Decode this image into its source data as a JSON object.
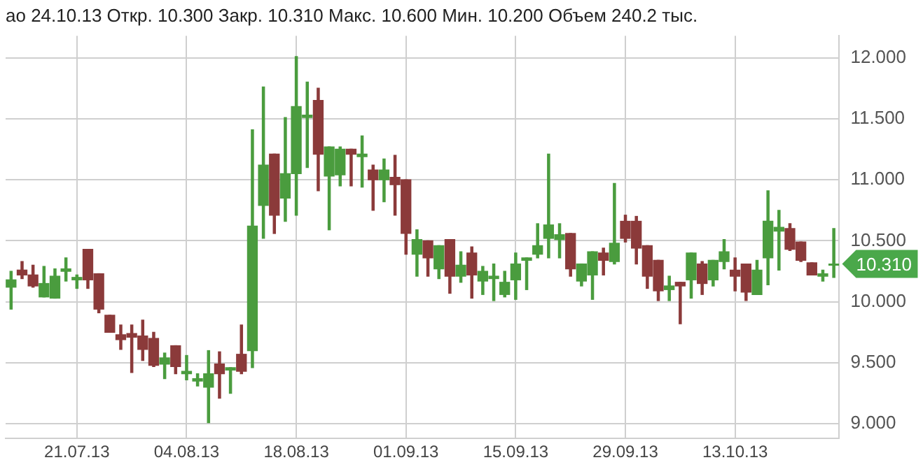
{
  "chart_data": {
    "type": "candlestick",
    "title": "ао 24.10.13 Откр. 10.300 Закр. 10.310 Макс. 10.600 Мин. 10.200 Объем 240.2 тыс.",
    "categories": [
      null,
      null,
      null,
      null,
      null,
      null,
      "21.07.13",
      null,
      null,
      null,
      null,
      null,
      null,
      null,
      null,
      null,
      "04.08.13",
      null,
      null,
      null,
      null,
      null,
      null,
      null,
      null,
      null,
      "18.08.13",
      null,
      null,
      null,
      null,
      null,
      null,
      null,
      null,
      null,
      "01.09.13",
      null,
      null,
      null,
      null,
      null,
      null,
      null,
      null,
      null,
      "15.09.13",
      null,
      null,
      null,
      null,
      null,
      null,
      null,
      null,
      null,
      "29.09.13",
      null,
      null,
      null,
      null,
      null,
      null,
      null,
      null,
      null,
      "13.10.13",
      null,
      null,
      null,
      null,
      null,
      null,
      null,
      null,
      null
    ],
    "ohlc": [
      [
        10.12,
        10.25,
        9.94,
        10.18
      ],
      [
        10.26,
        10.33,
        10.19,
        10.22
      ],
      [
        10.22,
        10.3,
        10.12,
        10.13
      ],
      [
        10.04,
        10.29,
        10.04,
        10.15
      ],
      [
        10.03,
        10.27,
        10.03,
        10.21
      ],
      [
        10.25,
        10.36,
        10.17,
        10.27
      ],
      [
        10.18,
        10.22,
        10.11,
        10.2
      ],
      [
        10.43,
        10.43,
        10.11,
        10.18
      ],
      [
        10.23,
        10.23,
        9.91,
        9.94
      ],
      [
        9.89,
        9.89,
        9.75,
        9.75
      ],
      [
        9.73,
        9.81,
        9.61,
        9.69
      ],
      [
        9.74,
        9.81,
        9.42,
        9.71
      ],
      [
        9.72,
        9.85,
        9.52,
        9.61
      ],
      [
        9.7,
        9.75,
        9.47,
        9.48
      ],
      [
        9.49,
        9.58,
        9.37,
        9.54
      ],
      [
        9.64,
        9.64,
        9.41,
        9.47
      ],
      [
        9.41,
        9.56,
        9.36,
        9.43
      ],
      [
        9.35,
        9.41,
        9.31,
        9.37
      ],
      [
        9.3,
        9.6,
        9.01,
        9.41
      ],
      [
        9.49,
        9.59,
        9.21,
        9.41
      ],
      [
        9.44,
        9.46,
        9.25,
        9.46
      ],
      [
        9.57,
        9.81,
        9.41,
        9.43
      ],
      [
        9.6,
        11.41,
        9.46,
        10.62
      ],
      [
        10.79,
        11.76,
        10.52,
        11.12
      ],
      [
        11.21,
        11.21,
        10.56,
        10.71
      ],
      [
        10.85,
        11.51,
        10.66,
        11.05
      ],
      [
        11.05,
        12.01,
        10.71,
        11.6
      ],
      [
        11.51,
        11.8,
        11.1,
        11.53
      ],
      [
        11.65,
        11.75,
        10.91,
        11.21
      ],
      [
        11.03,
        11.27,
        10.59,
        11.27
      ],
      [
        11.04,
        11.27,
        10.95,
        11.25
      ],
      [
        11.25,
        11.25,
        10.95,
        11.21
      ],
      [
        11.19,
        11.36,
        10.94,
        11.21
      ],
      [
        11.08,
        11.12,
        10.75,
        11.0
      ],
      [
        11.0,
        11.17,
        10.82,
        11.08
      ],
      [
        11.02,
        11.2,
        10.71,
        10.96
      ],
      [
        11.0,
        11.0,
        10.39,
        10.56
      ],
      [
        10.39,
        10.59,
        10.21,
        10.51
      ],
      [
        10.5,
        10.5,
        10.21,
        10.36
      ],
      [
        10.27,
        10.46,
        10.19,
        10.46
      ],
      [
        10.51,
        10.51,
        10.07,
        10.21
      ],
      [
        10.21,
        10.41,
        10.16,
        10.3
      ],
      [
        10.4,
        10.45,
        10.03,
        10.22
      ],
      [
        10.17,
        10.29,
        10.06,
        10.25
      ],
      [
        10.19,
        10.31,
        10.01,
        10.21
      ],
      [
        10.06,
        10.25,
        10.04,
        10.16
      ],
      [
        10.18,
        10.4,
        10.02,
        10.31
      ],
      [
        10.34,
        10.36,
        10.1,
        10.36
      ],
      [
        10.39,
        10.64,
        10.36,
        10.46
      ],
      [
        10.52,
        11.21,
        10.36,
        10.63
      ],
      [
        10.51,
        10.64,
        10.36,
        10.55
      ],
      [
        10.56,
        10.56,
        10.21,
        10.27
      ],
      [
        10.17,
        10.31,
        10.13,
        10.31
      ],
      [
        10.22,
        10.41,
        10.02,
        10.41
      ],
      [
        10.4,
        10.44,
        10.22,
        10.34
      ],
      [
        10.33,
        10.97,
        10.31,
        10.48
      ],
      [
        10.66,
        10.71,
        10.49,
        10.52
      ],
      [
        10.66,
        10.7,
        10.31,
        10.44
      ],
      [
        10.46,
        10.46,
        10.11,
        10.21
      ],
      [
        10.34,
        10.34,
        10.01,
        10.09
      ],
      [
        10.1,
        10.21,
        10.01,
        10.13
      ],
      [
        10.16,
        10.16,
        9.82,
        10.13
      ],
      [
        10.18,
        10.4,
        10.03,
        10.4
      ],
      [
        10.31,
        10.33,
        10.06,
        10.15
      ],
      [
        10.18,
        10.34,
        10.13,
        10.34
      ],
      [
        10.33,
        10.51,
        10.27,
        10.41
      ],
      [
        10.26,
        10.36,
        10.09,
        10.21
      ],
      [
        10.31,
        10.31,
        10.01,
        10.08
      ],
      [
        10.06,
        10.34,
        10.06,
        10.26
      ],
      [
        10.36,
        10.91,
        10.14,
        10.66
      ],
      [
        10.58,
        10.75,
        10.26,
        10.61
      ],
      [
        10.6,
        10.64,
        10.42,
        10.43
      ],
      [
        10.49,
        10.49,
        10.33,
        10.34
      ],
      [
        10.32,
        10.32,
        10.22,
        10.22
      ],
      [
        10.21,
        10.26,
        10.17,
        10.23
      ],
      [
        10.3,
        10.6,
        10.2,
        10.31
      ]
    ],
    "colors": [
      "#4a9c3e",
      "#8b3a3a",
      "#8b3a3a",
      "#4a9c3e",
      "#4a9c3e",
      "#4a9c3e",
      "#4a9c3e",
      "#8b3a3a",
      "#8b3a3a",
      "#8b3a3a",
      "#8b3a3a",
      "#8b3a3a",
      "#8b3a3a",
      "#8b3a3a",
      "#4a9c3e",
      "#8b3a3a",
      "#4a9c3e",
      "#4a9c3e",
      "#4a9c3e",
      "#8b3a3a",
      "#4a9c3e",
      "#8b3a3a",
      "#4a9c3e",
      "#4a9c3e",
      "#8b3a3a",
      "#4a9c3e",
      "#4a9c3e",
      "#4a9c3e",
      "#8b3a3a",
      "#4a9c3e",
      "#4a9c3e",
      "#8b3a3a",
      "#4a9c3e",
      "#8b3a3a",
      "#4a9c3e",
      "#8b3a3a",
      "#8b3a3a",
      "#4a9c3e",
      "#8b3a3a",
      "#4a9c3e",
      "#8b3a3a",
      "#4a9c3e",
      "#8b3a3a",
      "#4a9c3e",
      "#4a9c3e",
      "#4a9c3e",
      "#4a9c3e",
      "#4a9c3e",
      "#4a9c3e",
      "#4a9c3e",
      "#4a9c3e",
      "#8b3a3a",
      "#4a9c3e",
      "#4a9c3e",
      "#8b3a3a",
      "#4a9c3e",
      "#8b3a3a",
      "#8b3a3a",
      "#8b3a3a",
      "#8b3a3a",
      "#4a9c3e",
      "#8b3a3a",
      "#4a9c3e",
      "#8b3a3a",
      "#4a9c3e",
      "#4a9c3e",
      "#8b3a3a",
      "#8b3a3a",
      "#4a9c3e",
      "#4a9c3e",
      "#4a9c3e",
      "#8b3a3a",
      "#8b3a3a",
      "#8b3a3a",
      "#4a9c3e",
      "#4a9c3e"
    ],
    "ylim": [
      8.88,
      12.18
    ],
    "yticks": [
      {
        "value": 9,
        "label": "9.000"
      },
      {
        "value": 9.5,
        "label": "9.500"
      },
      {
        "value": 10,
        "label": "10.000"
      },
      {
        "value": 10.5,
        "label": "10.500"
      },
      {
        "value": 11,
        "label": "11.000"
      },
      {
        "value": 11.5,
        "label": "11.500"
      },
      {
        "value": 12,
        "label": "12.000"
      }
    ],
    "grid": true,
    "annotations": [
      "10.310"
    ]
  }
}
